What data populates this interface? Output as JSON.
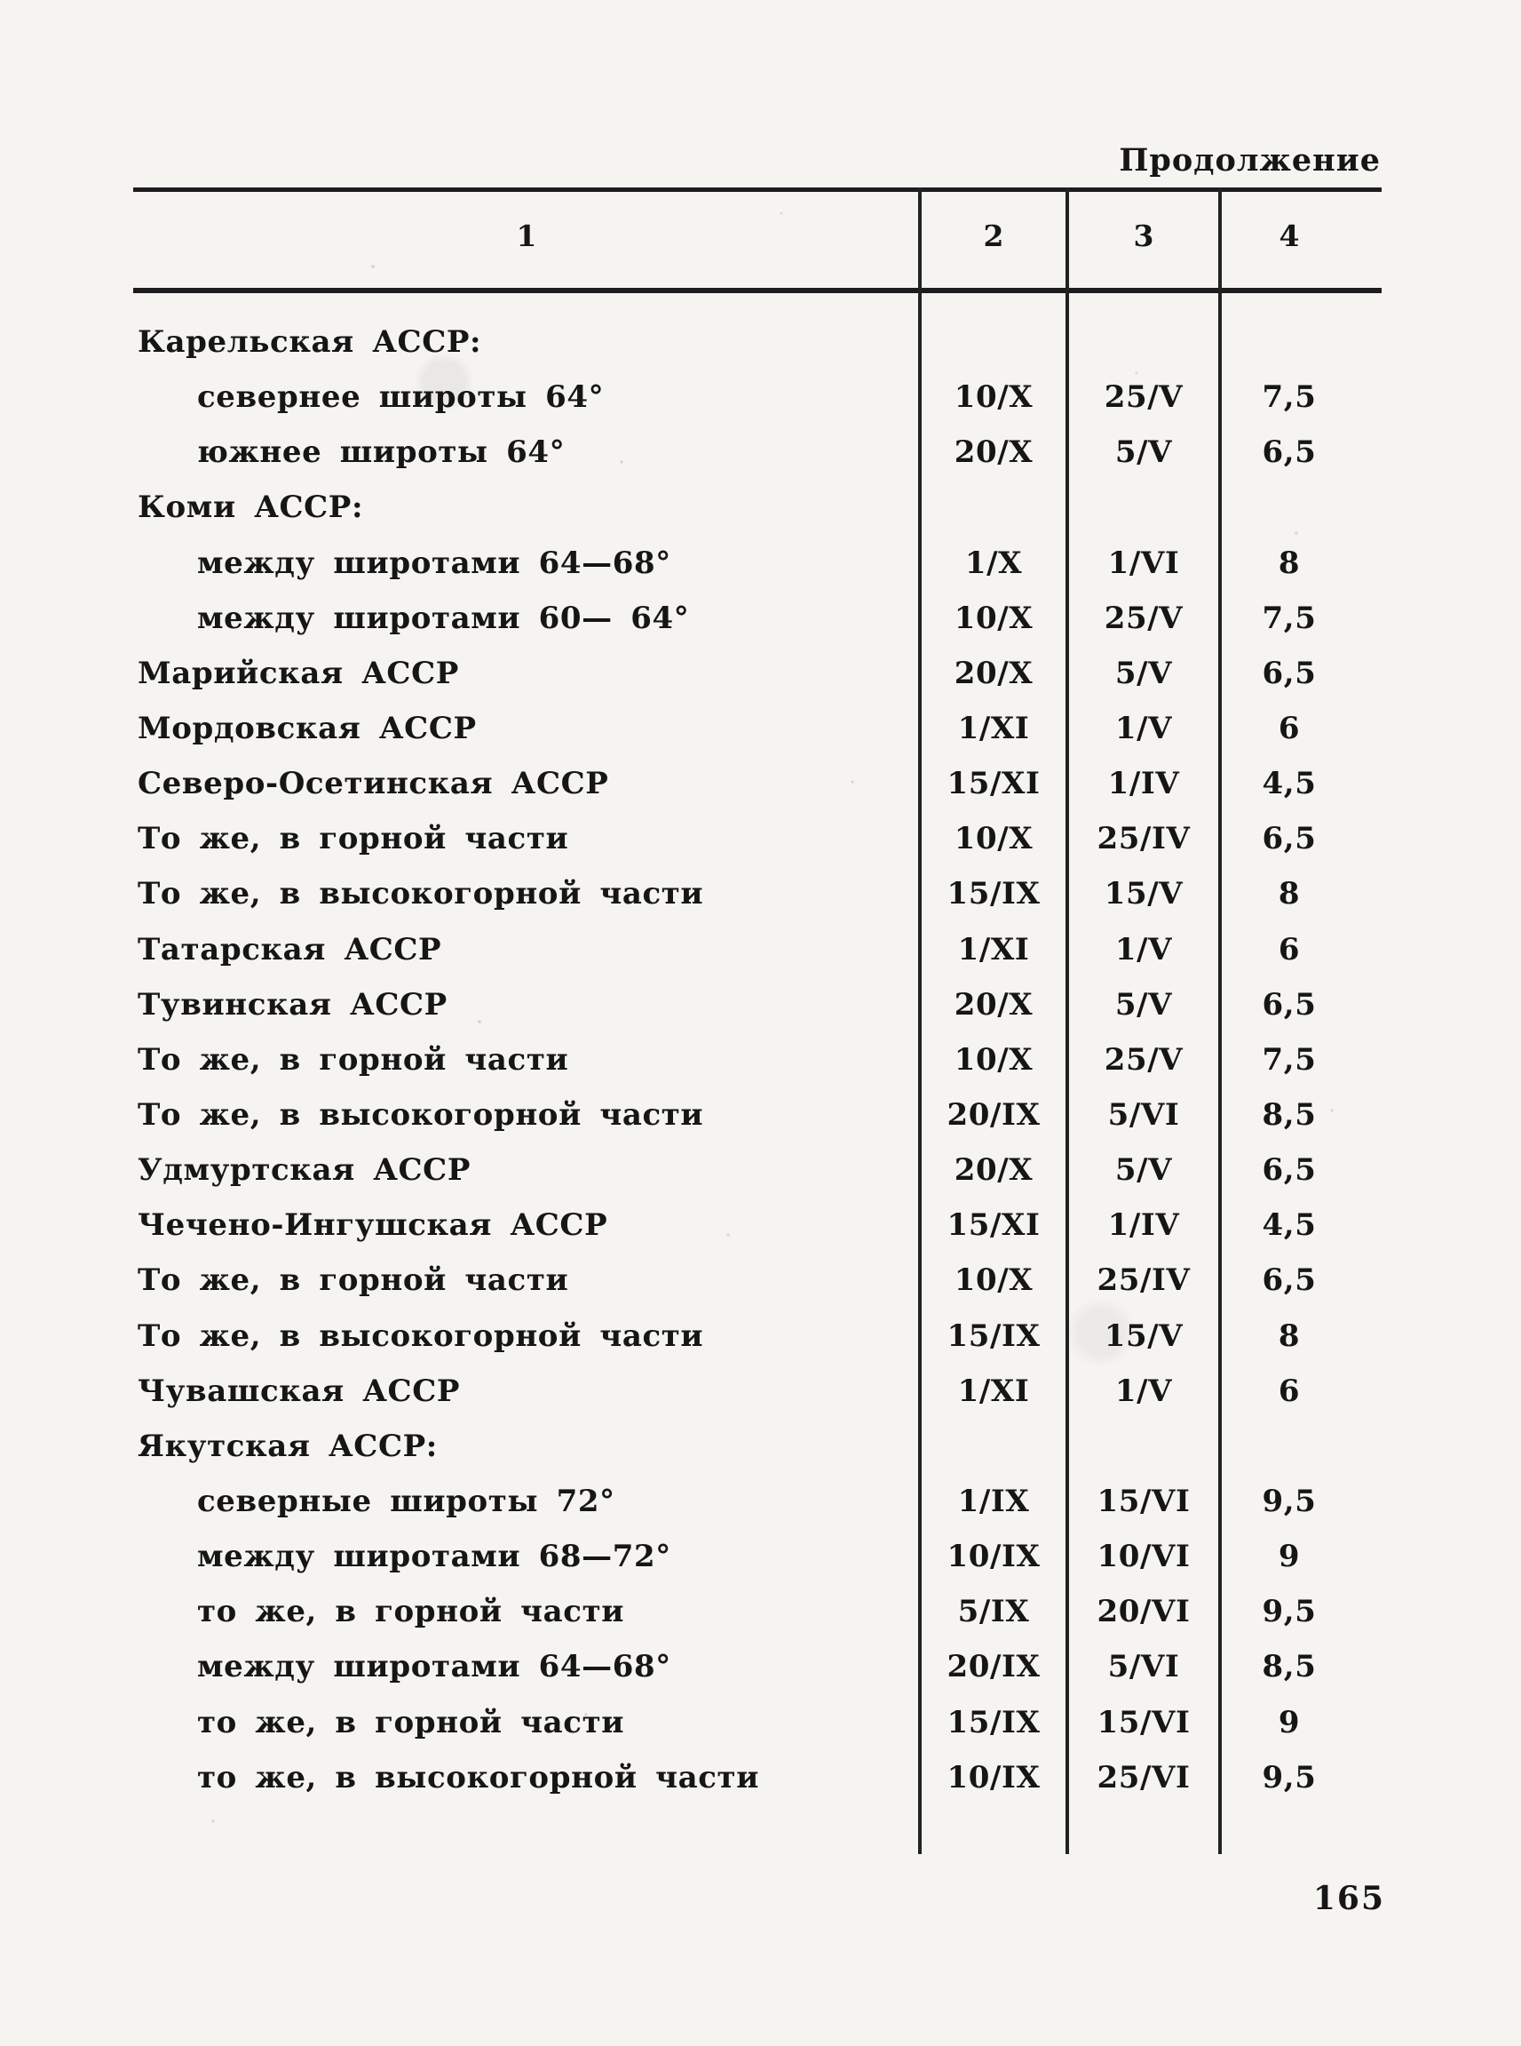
{
  "page": {
    "continuation_label": "Продолжение",
    "page_number": "165"
  },
  "table": {
    "headers": [
      "1",
      "2",
      "3",
      "4"
    ],
    "rows": [
      {
        "label": "Карельская АССР:",
        "c2": "",
        "c3": "",
        "c4": ""
      },
      {
        "label": "севернее широты 64°",
        "c2": "10/X",
        "c3": "25/V",
        "c4": "7,5"
      },
      {
        "label": "южнее широты 64°",
        "c2": "20/X",
        "c3": "5/V",
        "c4": "6,5"
      },
      {
        "label": "Коми АССР:",
        "c2": "",
        "c3": "",
        "c4": ""
      },
      {
        "label": "между широтами 64—68°",
        "c2": "1/X",
        "c3": "1/VI",
        "c4": "8"
      },
      {
        "label": "между широтами 60— 64°",
        "c2": "10/X",
        "c3": "25/V",
        "c4": "7,5"
      },
      {
        "label": "Марийская АССР",
        "c2": "20/X",
        "c3": "5/V",
        "c4": "6,5"
      },
      {
        "label": "Мордовская АССР",
        "c2": "1/XI",
        "c3": "1/V",
        "c4": "6"
      },
      {
        "label": "Северо-Осетинская АССР",
        "c2": "15/XI",
        "c3": "1/IV",
        "c4": "4,5"
      },
      {
        "label": "То же, в горной части",
        "c2": "10/X",
        "c3": "25/IV",
        "c4": "6,5"
      },
      {
        "label": "То же, в высокогорной части",
        "c2": "15/IX",
        "c3": "15/V",
        "c4": "8"
      },
      {
        "label": "Татарская АССР",
        "c2": "1/XI",
        "c3": "1/V",
        "c4": "6"
      },
      {
        "label": "Тувинская АССР",
        "c2": "20/X",
        "c3": "5/V",
        "c4": "6,5"
      },
      {
        "label": "То же, в горной части",
        "c2": "10/X",
        "c3": "25/V",
        "c4": "7,5"
      },
      {
        "label": "То же, в высокогорной части",
        "c2": "20/IX",
        "c3": "5/VI",
        "c4": "8,5"
      },
      {
        "label": "Удмуртская АССР",
        "c2": "20/X",
        "c3": "5/V",
        "c4": "6,5"
      },
      {
        "label": "Чечено-Ингушская АССР",
        "c2": "15/XI",
        "c3": "1/IV",
        "c4": "4,5"
      },
      {
        "label": "То же, в горной части",
        "c2": "10/X",
        "c3": "25/IV",
        "c4": "6,5"
      },
      {
        "label": "То же, в высокогорной части",
        "c2": "15/IX",
        "c3": "15/V",
        "c4": "8"
      },
      {
        "label": "Чувашская АССР",
        "c2": "1/XI",
        "c3": "1/V",
        "c4": "6"
      },
      {
        "label": "Якутская АССР:",
        "c2": "",
        "c3": "",
        "c4": ""
      },
      {
        "label": "северные широты 72°",
        "c2": "1/IX",
        "c3": "15/VI",
        "c4": "9,5"
      },
      {
        "label": "между широтами 68—72°",
        "c2": "10/IX",
        "c3": "10/VI",
        "c4": "9"
      },
      {
        "label": "то же, в горной части",
        "c2": "5/IX",
        "c3": "20/VI",
        "c4": "9,5"
      },
      {
        "label": "между широтами 64—68°",
        "c2": "20/IX",
        "c3": "5/VI",
        "c4": "8,5"
      },
      {
        "label": "то же, в горной части",
        "c2": "15/IX",
        "c3": "15/VI",
        "c4": "9"
      },
      {
        "label": "то же, в высокогорной части",
        "c2": "10/IX",
        "c3": "25/VI",
        "c4": "9,5"
      }
    ]
  }
}
